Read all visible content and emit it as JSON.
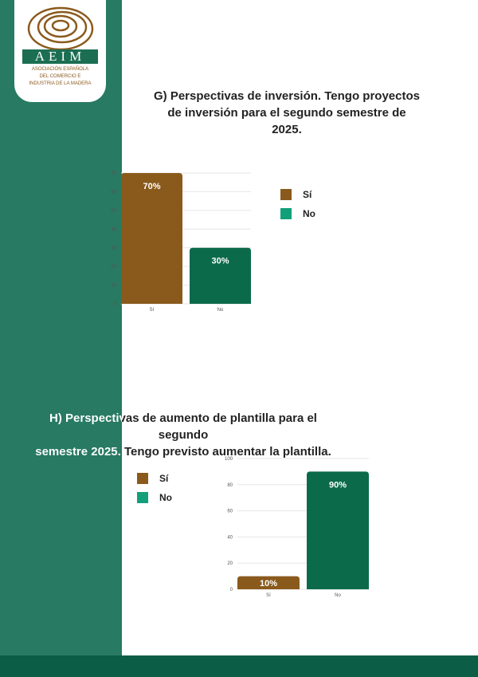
{
  "logo": {
    "acronym": "AEIM",
    "subtitle_lines": [
      "ASOCIACIÓN ESPAÑOLA",
      "DEL COMERCIO E",
      "INDUSTRIA DE LA MADERA"
    ]
  },
  "colors": {
    "si": "#8a5a1c",
    "no": "#0b6a4a",
    "legend_no": "#12a07a",
    "sidebar": "#287a62",
    "footer": "#0b5e45"
  },
  "chart_data": [
    {
      "type": "bar",
      "title": "G) Perspectivas de inversión. Tengo proyectos de inversión para el segundo semestre de 2025.",
      "title_lines": [
        "G) Perspectivas de inversión. Tengo proyectos",
        "de inversión para el segundo semestre de 2025."
      ],
      "categories": [
        "Sí",
        "No"
      ],
      "values": [
        70,
        30
      ],
      "data_labels": [
        "70%",
        "30%"
      ],
      "ylim": [
        0,
        70
      ],
      "yticks": [
        0,
        10,
        20,
        30,
        40,
        50,
        60,
        70
      ],
      "legend": [
        "Sí",
        "No"
      ],
      "legend_position": "right",
      "grid": true
    },
    {
      "type": "bar",
      "title": "H) Perspectivas de aumento de plantilla para el segundo semestre 2025. Tengo previsto aumentar la plantilla.",
      "title_lines": [
        "H) Perspectivas de aumento de plantilla para el segundo",
        "semestre 2025. Tengo previsto aumentar la plantilla."
      ],
      "categories": [
        "Sí",
        "No"
      ],
      "values": [
        10,
        90
      ],
      "data_labels": [
        "10%",
        "90%"
      ],
      "ylim": [
        0,
        100
      ],
      "yticks": [
        0,
        20,
        40,
        60,
        80,
        100
      ],
      "legend": [
        "Sí",
        "No"
      ],
      "legend_position": "left",
      "grid": true
    }
  ]
}
